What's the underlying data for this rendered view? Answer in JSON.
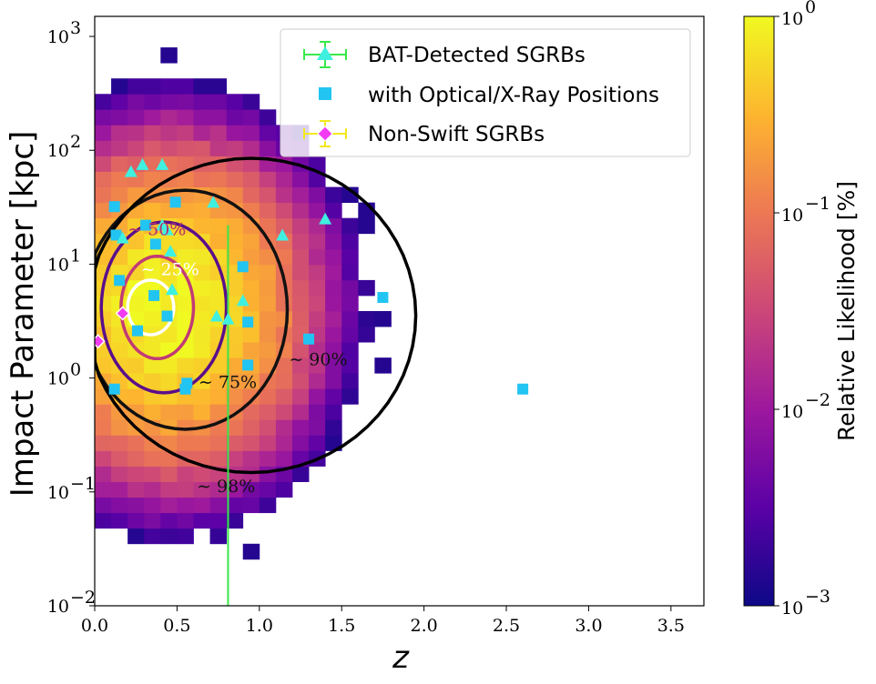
{
  "chart_data": {
    "type": "heatmap",
    "xlabel": "z",
    "ylabel": "Impact Parameter [kpc]",
    "colorbar_label": "Relative Likelihood [%]",
    "xlim": [
      0,
      3.7
    ],
    "ylim": [
      0.01,
      1500
    ],
    "yscale": "log",
    "x_ticks": [
      "0.0",
      "0.5",
      "1.0",
      "1.5",
      "2.0",
      "2.5",
      "3.0",
      "3.5"
    ],
    "y_ticks": [
      {
        "base": "10",
        "exp": "−2",
        "value": 0.01
      },
      {
        "base": "10",
        "exp": "−1",
        "value": 0.1
      },
      {
        "base": "10",
        "exp": "0",
        "value": 1
      },
      {
        "base": "10",
        "exp": "1",
        "value": 10
      },
      {
        "base": "10",
        "exp": "2",
        "value": 100
      },
      {
        "base": "10",
        "exp": "3",
        "value": 1000
      }
    ],
    "colorbar_ticks": [
      {
        "base": "10",
        "exp": "0",
        "value": 1
      },
      {
        "base": "10",
        "exp": "−1",
        "value": 0.1
      },
      {
        "base": "10",
        "exp": "−2",
        "value": 0.01
      },
      {
        "base": "10",
        "exp": "−3",
        "value": 0.001
      }
    ],
    "colormap": [
      "#0d0887",
      "#5c01a6",
      "#9c179e",
      "#cc4778",
      "#ed7953",
      "#fdb42f",
      "#f0f921"
    ],
    "legend": {
      "placement": "top-center",
      "entries": [
        {
          "label": "BAT-Detected SGRBs",
          "marker": "triangle",
          "color": "#3ff0e0",
          "errorbar_color": "#39e84a"
        },
        {
          "label": "with Optical/X-Ray Positions",
          "marker": "square",
          "color": "#22c4f2"
        },
        {
          "label": "Non-Swift SGRBs",
          "marker": "diamond",
          "color": "#f23bf2",
          "errorbar_color": "#f2e81f"
        }
      ]
    },
    "contour_labels": [
      {
        "text": "∼ 50%",
        "x": 0.2,
        "y": 18,
        "color": "#b4336e"
      },
      {
        "text": "∼ 25%",
        "x": 0.28,
        "y": 8,
        "color": "#ffffff"
      },
      {
        "text": "∼ 75%",
        "x": 0.63,
        "y": 0.82,
        "color": "#111111"
      },
      {
        "text": "∼ 90%",
        "x": 1.18,
        "y": 1.3,
        "color": "#111111"
      },
      {
        "text": "∼ 98%",
        "x": 0.62,
        "y": 0.1,
        "color": "#111111"
      }
    ],
    "series": [
      {
        "name": "BAT-Detected SGRBs",
        "points": [
          {
            "x": 0.22,
            "y": 65
          },
          {
            "x": 0.29,
            "y": 75
          },
          {
            "x": 0.41,
            "y": 75
          },
          {
            "x": 0.41,
            "y": 22
          },
          {
            "x": 0.44,
            "y": 20
          },
          {
            "x": 0.46,
            "y": 13
          },
          {
            "x": 0.72,
            "y": 35
          },
          {
            "x": 0.74,
            "y": 3.5
          },
          {
            "x": 0.81,
            "y": 3.3
          },
          {
            "x": 0.9,
            "y": 4.8
          },
          {
            "x": 1.14,
            "y": 18
          },
          {
            "x": 1.4,
            "y": 25
          },
          {
            "x": 0.47,
            "y": 6
          },
          {
            "x": 0.17,
            "y": 17
          }
        ]
      },
      {
        "name": "with Optical/X-Ray Positions",
        "points": [
          {
            "x": 0.12,
            "y": 32
          },
          {
            "x": 0.13,
            "y": 18
          },
          {
            "x": 0.15,
            "y": 7.2
          },
          {
            "x": 0.12,
            "y": 0.8
          },
          {
            "x": 0.26,
            "y": 2.6
          },
          {
            "x": 0.31,
            "y": 22
          },
          {
            "x": 0.37,
            "y": 15
          },
          {
            "x": 0.36,
            "y": 5.3
          },
          {
            "x": 0.44,
            "y": 3.5
          },
          {
            "x": 0.49,
            "y": 35
          },
          {
            "x": 0.55,
            "y": 0.8
          },
          {
            "x": 0.56,
            "y": 0.9
          },
          {
            "x": 0.9,
            "y": 9.5
          },
          {
            "x": 0.93,
            "y": 3.1
          },
          {
            "x": 0.93,
            "y": 1.3
          },
          {
            "x": 1.3,
            "y": 2.2
          },
          {
            "x": 1.75,
            "y": 5.1
          },
          {
            "x": 2.6,
            "y": 0.8
          }
        ]
      },
      {
        "name": "Non-Swift SGRBs",
        "points": [
          {
            "x": 0.02,
            "y": 2.1
          },
          {
            "x": 0.17,
            "y": 3.7
          }
        ]
      }
    ]
  }
}
